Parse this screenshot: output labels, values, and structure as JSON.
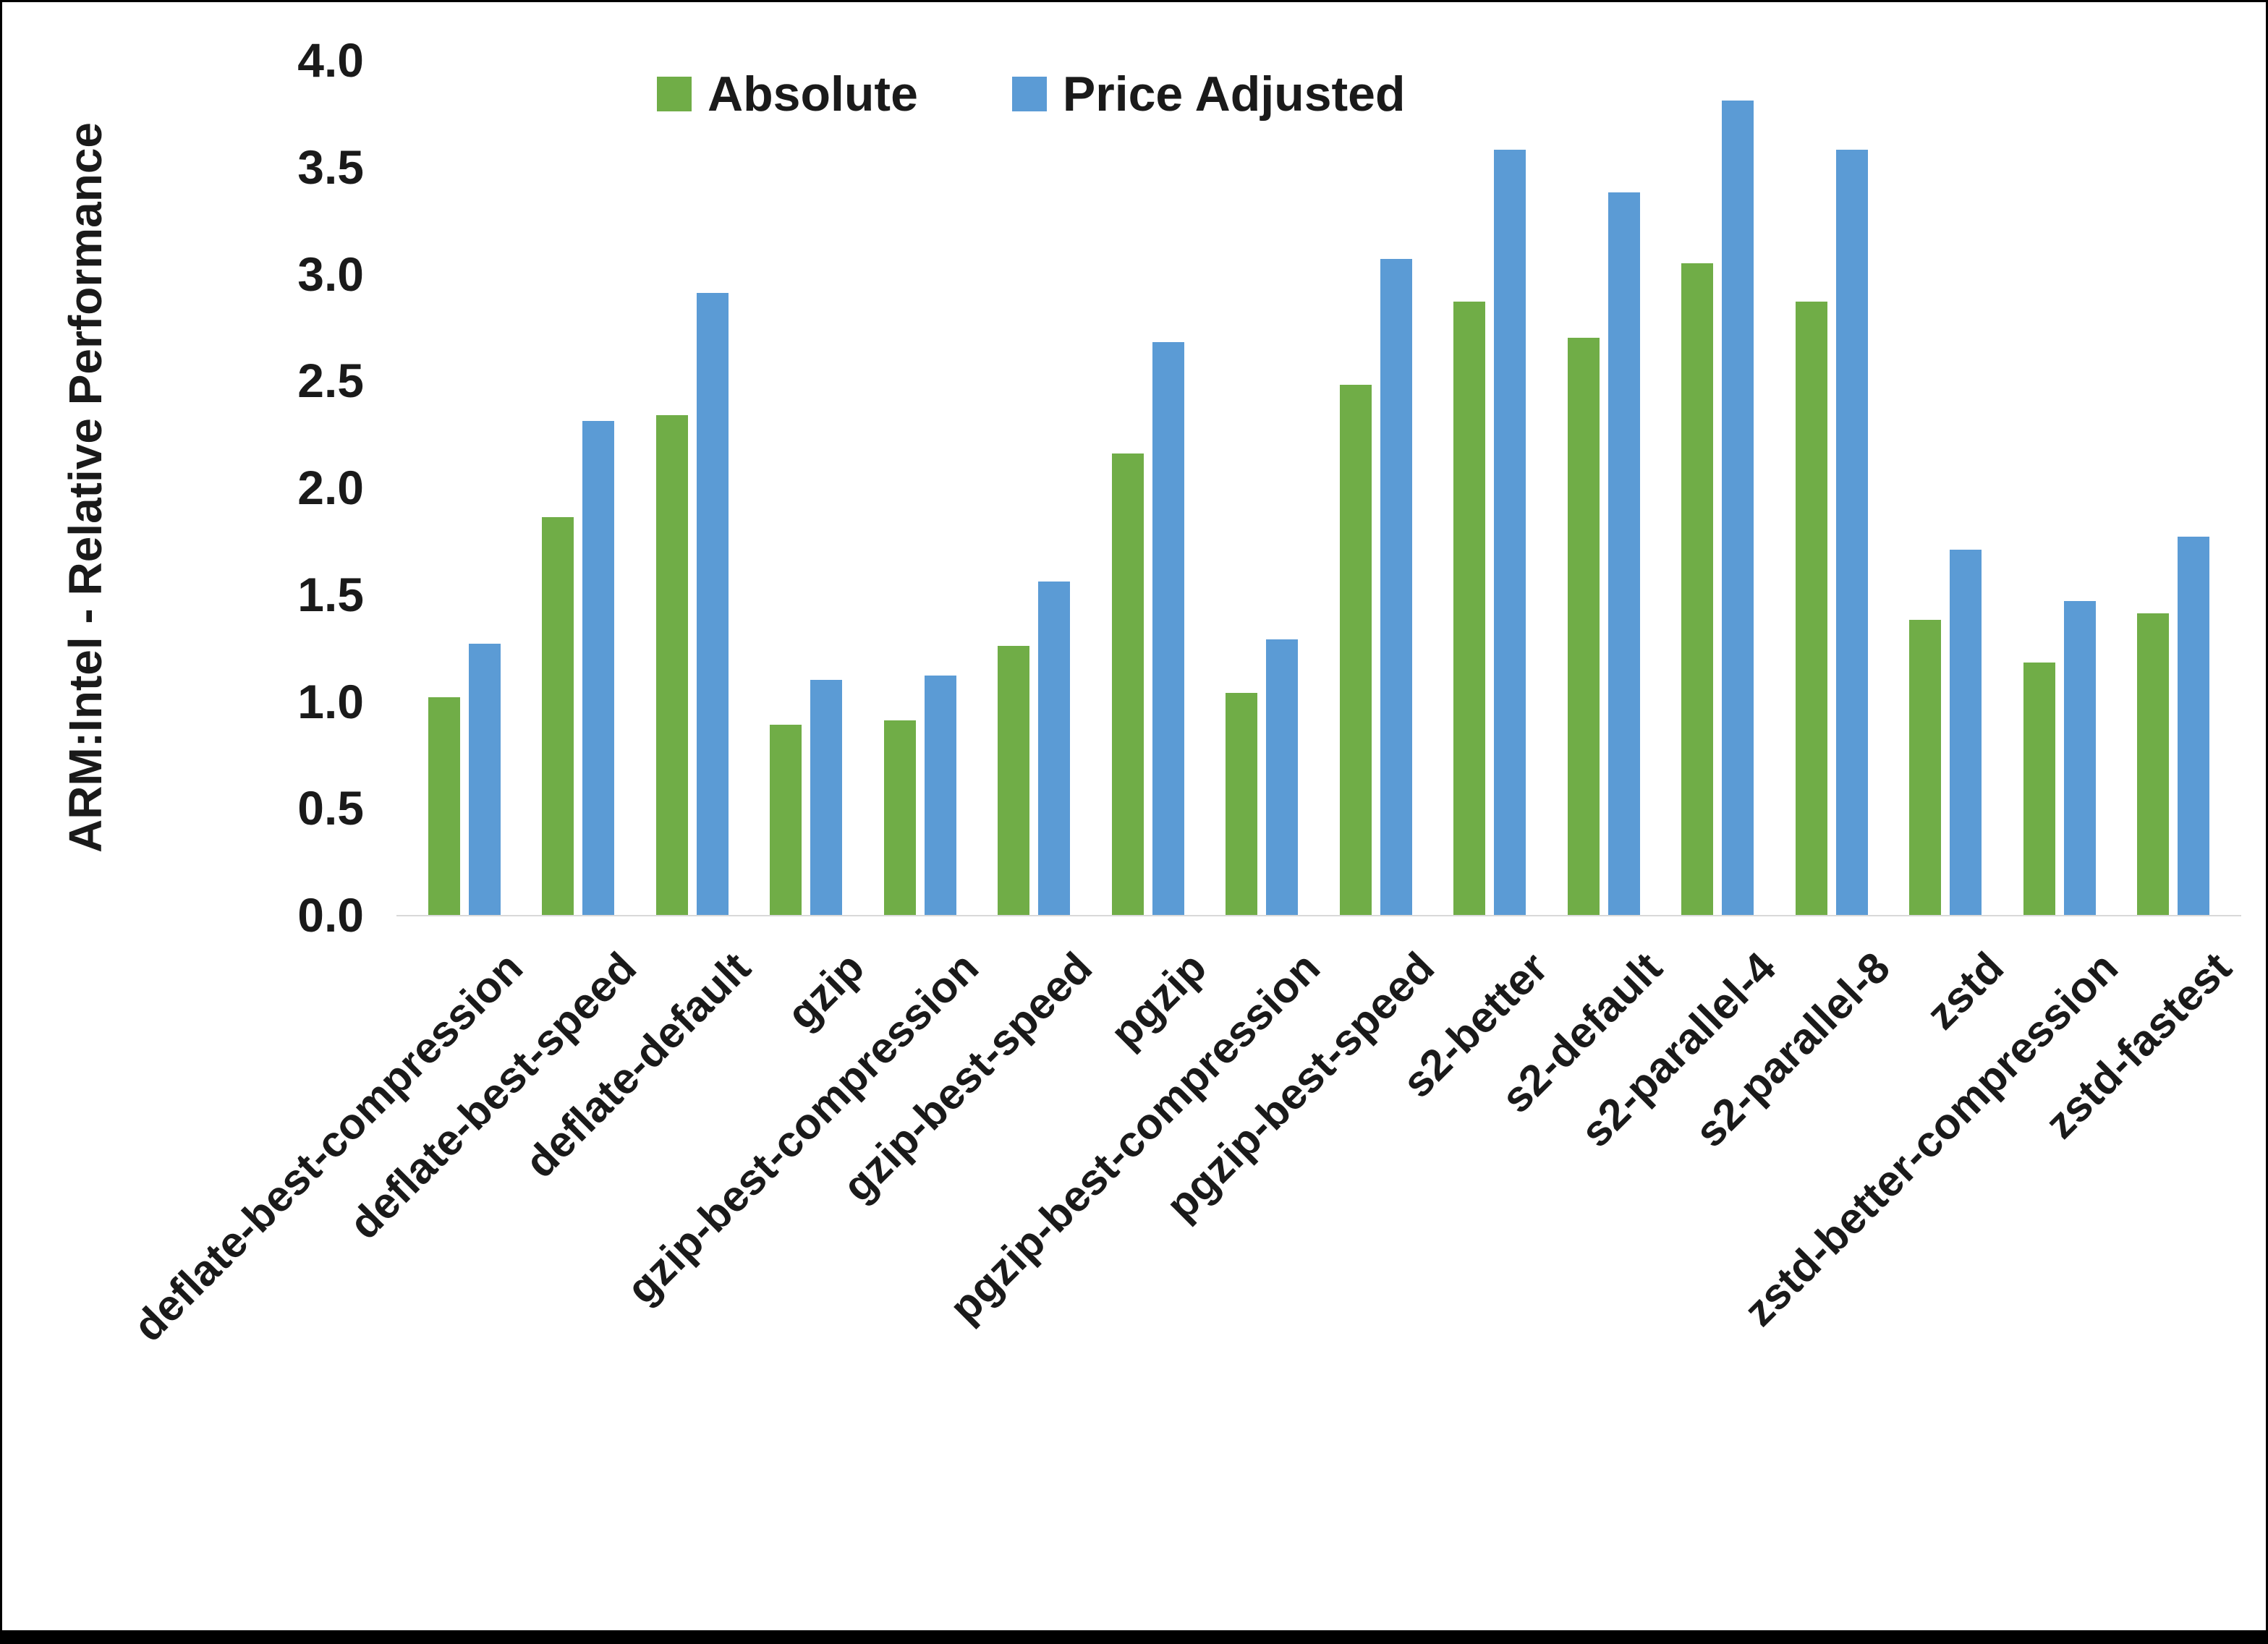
{
  "chart_data": {
    "type": "bar",
    "title": "",
    "xlabel": "",
    "ylabel": "ARM:Intel - Relative Performance",
    "ylim": [
      0.0,
      4.0
    ],
    "ytick_labels": [
      "0.0",
      "0.5",
      "1.0",
      "1.5",
      "2.0",
      "2.5",
      "3.0",
      "3.5",
      "4.0"
    ],
    "grid": false,
    "legend_position": "top",
    "categories": [
      "deflate-best-compression",
      "deflate-best-speed",
      "deflate-default",
      "gzip",
      "gzip-best-compression",
      "gzip-best-speed",
      "pgzip",
      "pgzip-best-compression",
      "pgzip-best-speed",
      "s2-better",
      "s2-default",
      "s2-parallel-4",
      "s2-parallel-8",
      "zstd",
      "zstd-better-compression",
      "zstd-fastest"
    ],
    "series": [
      {
        "name": "Absolute",
        "color": "#70AD47",
        "values": [
          1.02,
          1.86,
          2.34,
          0.89,
          0.91,
          1.26,
          2.16,
          1.04,
          2.48,
          2.87,
          2.7,
          3.05,
          2.87,
          1.38,
          1.18,
          1.41
        ]
      },
      {
        "name": "Price Adjusted",
        "color": "#5B9BD5",
        "values": [
          1.27,
          2.31,
          2.91,
          1.1,
          1.12,
          1.56,
          2.68,
          1.29,
          3.07,
          3.58,
          3.38,
          3.81,
          3.58,
          1.71,
          1.47,
          1.77
        ]
      }
    ],
    "colors": {
      "axis_line": "#d9d9d9",
      "text": "#1a1a1a",
      "background": "#ffffff"
    }
  }
}
